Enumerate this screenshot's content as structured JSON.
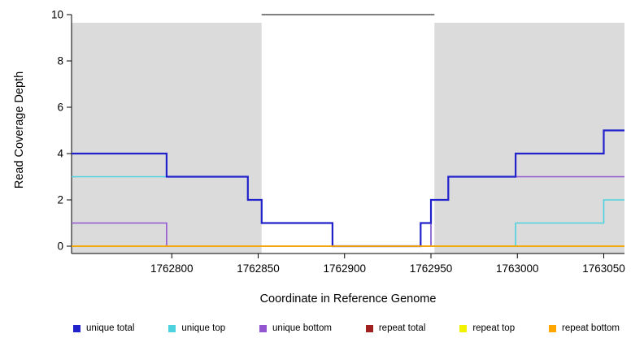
{
  "chart_data": {
    "type": "line",
    "step": true,
    "title": "",
    "xlabel": "Coordinate in Reference Genome",
    "ylabel": "Read Coverage Depth",
    "xlim": [
      1762742,
      1763062
    ],
    "ylim": [
      0,
      10
    ],
    "xticks": [
      1762800,
      1762850,
      1762900,
      1762950,
      1763000,
      1763050
    ],
    "yticks": [
      0,
      2,
      4,
      6,
      8,
      10
    ],
    "grid": false,
    "legend_position": "bottom",
    "background_color": "#ffffff",
    "shade_color": "#dbdbdb",
    "shaded_regions": [
      {
        "x0": 1762742,
        "x1": 1762852
      },
      {
        "x0": 1762952,
        "x1": 1763062
      }
    ],
    "max_line": {
      "y": 10,
      "x0": 1762852,
      "x1": 1762952,
      "color": "#000000"
    },
    "series": [
      {
        "name": "unique total",
        "color": "#2222cc",
        "z": 3,
        "lw": 2.2,
        "steps": [
          [
            1762742,
            4
          ],
          [
            1762797,
            3
          ],
          [
            1762844,
            2
          ],
          [
            1762852,
            1
          ],
          [
            1762893,
            0
          ],
          [
            1762944,
            1
          ],
          [
            1762950,
            2
          ],
          [
            1762960,
            3
          ],
          [
            1762999,
            4
          ],
          [
            1763050,
            5
          ],
          [
            1763062,
            5
          ]
        ]
      },
      {
        "name": "unique top",
        "color": "#4dd2de",
        "z": 1,
        "lw": 1.6,
        "steps": [
          [
            1762742,
            3
          ],
          [
            1762844,
            2
          ],
          [
            1762852,
            1
          ],
          [
            1762893,
            0
          ],
          [
            1762944,
            1
          ],
          [
            1762950,
            0
          ],
          [
            1762999,
            1
          ],
          [
            1763050,
            2
          ],
          [
            1763062,
            2
          ]
        ]
      },
      {
        "name": "unique bottom",
        "color": "#9455d0",
        "z": 2,
        "lw": 1.6,
        "steps": [
          [
            1762742,
            1
          ],
          [
            1762797,
            0
          ],
          [
            1762950,
            2
          ],
          [
            1762960,
            3
          ],
          [
            1763062,
            3
          ]
        ]
      },
      {
        "name": "repeat total",
        "color": "#a02020",
        "z": 4,
        "lw": 1.4,
        "steps": [
          [
            1762742,
            0
          ],
          [
            1763062,
            0
          ]
        ]
      },
      {
        "name": "repeat top",
        "color": "#f2f200",
        "z": 5,
        "lw": 1.4,
        "steps": [
          [
            1762742,
            0
          ],
          [
            1763062,
            0
          ]
        ]
      },
      {
        "name": "repeat bottom",
        "color": "#ffa500",
        "z": 6,
        "lw": 1.4,
        "steps": [
          [
            1762742,
            0
          ],
          [
            1763062,
            0
          ]
        ]
      }
    ]
  }
}
